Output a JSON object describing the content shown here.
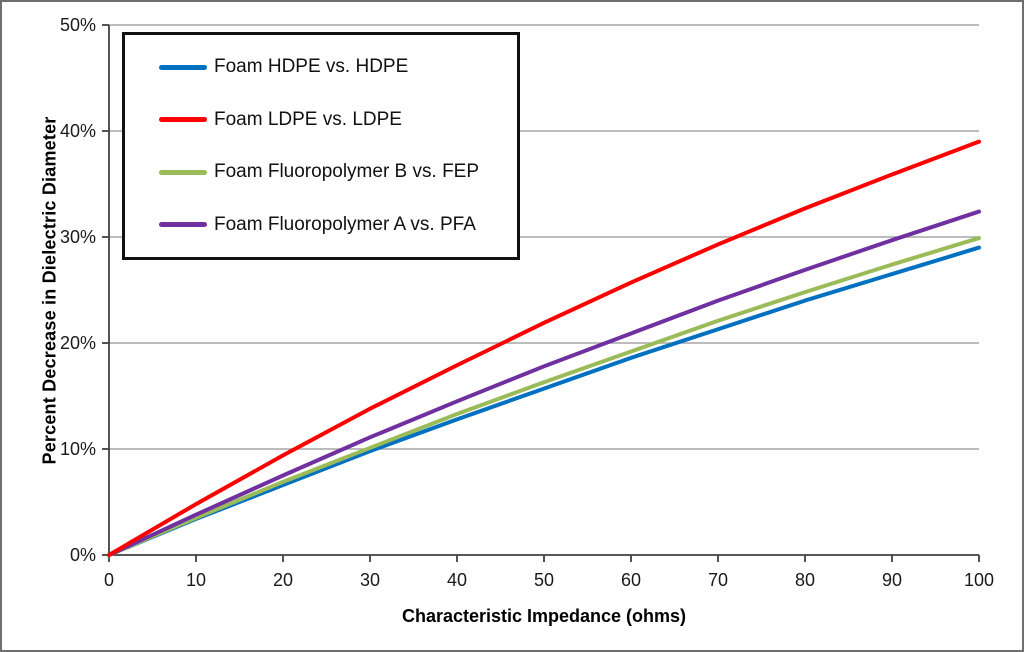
{
  "chart_data": {
    "type": "line",
    "title": "",
    "xlabel": "Characteristic Impedance (ohms)",
    "ylabel": "Percent Decrease in Dielectric Diameter",
    "xlim": [
      0,
      100
    ],
    "ylim": [
      0,
      50
    ],
    "x_ticks": [
      0,
      10,
      20,
      30,
      40,
      50,
      60,
      70,
      80,
      90,
      100
    ],
    "x_tick_labels": [
      "0",
      "10",
      "20",
      "30",
      "40",
      "50",
      "60",
      "70",
      "80",
      "90",
      "100"
    ],
    "y_ticks": [
      0,
      10,
      20,
      30,
      40,
      50
    ],
    "y_tick_labels": [
      "0%",
      "10%",
      "20%",
      "30%",
      "40%",
      "50%"
    ],
    "grid": "horizontal gridlines only",
    "legend_position": "top-left inside plot, boxed",
    "x": [
      0,
      10,
      20,
      30,
      40,
      50,
      60,
      70,
      80,
      90,
      100
    ],
    "series": [
      {
        "name": "Foam HDPE vs. HDPE",
        "color": "#0070C0",
        "values": [
          0,
          3.4,
          6.6,
          9.8,
          12.8,
          15.7,
          18.6,
          21.3,
          24.0,
          26.5,
          29.0
        ]
      },
      {
        "name": "Foam LDPE vs. LDPE",
        "color": "#FF0000",
        "values": [
          0,
          4.8,
          9.4,
          13.8,
          17.9,
          21.9,
          25.7,
          29.3,
          32.7,
          35.9,
          39.0
        ]
      },
      {
        "name": "Foam Fluoropolymer B vs. FEP",
        "color": "#9BBB59",
        "values": [
          0,
          3.5,
          6.9,
          10.1,
          13.3,
          16.3,
          19.2,
          22.1,
          24.8,
          27.4,
          29.9
        ]
      },
      {
        "name": "Foam Fluoropolymer A vs. PFA",
        "color": "#7030A0",
        "values": [
          0,
          3.8,
          7.5,
          11.1,
          14.5,
          17.8,
          20.9,
          24.0,
          26.9,
          29.7,
          32.4
        ]
      }
    ],
    "style": {
      "grid_color": "#A6A6A6",
      "axis_color": "#404040",
      "line_width": 4,
      "plot_background": "#FFFFFF"
    }
  }
}
